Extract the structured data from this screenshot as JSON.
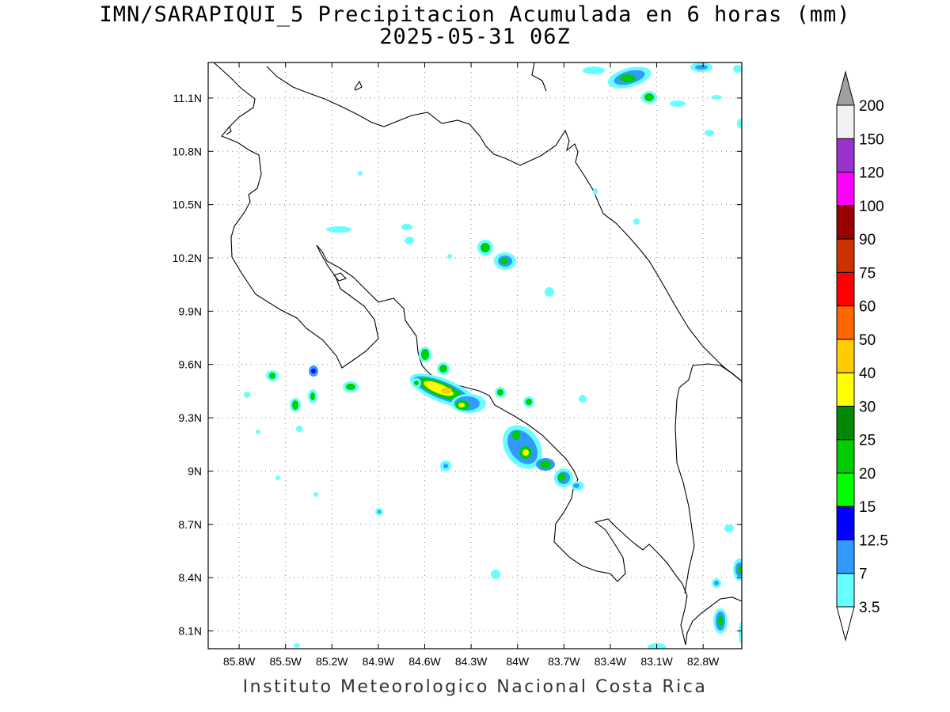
{
  "title": "IMN/SARAPIQUI_5 Precipitacion Acumulada en 6 horas (mm)",
  "subtitle": "2025-05-31 06Z",
  "footer": "Instituto Meteorologico Nacional Costa Rica",
  "map": {
    "lon_range": [
      -86.0,
      -82.55
    ],
    "lat_range": [
      8.0,
      11.3
    ],
    "lat_ticks": [
      "11.1N",
      "10.8N",
      "10.5N",
      "10.2N",
      "9.9N",
      "9.6N",
      "9.3N",
      "9N",
      "8.7N",
      "8.4N",
      "8.1N"
    ],
    "lon_ticks": [
      "85.8W",
      "85.5W",
      "85.2W",
      "84.9W",
      "84.6W",
      "84.3W",
      "84W",
      "83.7W",
      "83.4W",
      "83.1W",
      "82.8W"
    ],
    "grid": "dotted"
  },
  "colorbar": {
    "levels": [
      "3.5",
      "7",
      "12.5",
      "15",
      "20",
      "25",
      "30",
      "40",
      "50",
      "60",
      "75",
      "90",
      "100",
      "120",
      "150",
      "200"
    ],
    "colors": [
      "#66ffff",
      "#3399ff",
      "#0000ff",
      "#00ff00",
      "#00cc00",
      "#008800",
      "#ffff00",
      "#ffcc00",
      "#ff6600",
      "#ff0000",
      "#cc3300",
      "#990000",
      "#ff00ff",
      "#9933cc",
      "#f2f2f2",
      "#a0a0a0"
    ]
  }
}
